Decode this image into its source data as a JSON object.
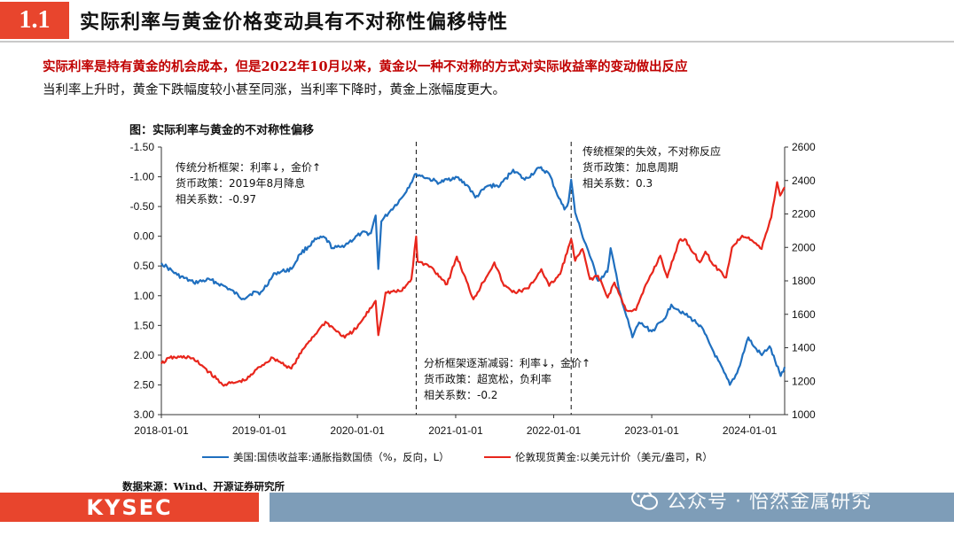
{
  "header": {
    "section_number": "1.1",
    "title": "实际利率与黄金价格变动具有不对称性偏移特性"
  },
  "subtitle": {
    "red": "实际利率是持有黄金的机会成本，但是2022年10月以来，黄金以一种不对称的方式对实际收益率的变动做出反应",
    "black": "当利率上升时，黄金下跌幅度较小甚至同涨，当利率下降时，黄金上涨幅度更大。"
  },
  "chart_title": "图：实际利率与黄金的不对称性偏移",
  "chart_data": {
    "type": "line",
    "title": "图：实际利率与黄金的不对称性偏移",
    "x_ticks": [
      "2018-01-01",
      "2019-01-01",
      "2020-01-01",
      "2021-01-01",
      "2022-01-01",
      "2023-01-01",
      "2024-01-01"
    ],
    "x_range": [
      "2018-01-01",
      "2024-05-10"
    ],
    "y_left_ticks": [
      "-1.50",
      "-1.00",
      "-0.50",
      "0.00",
      "0.50",
      "1.00",
      "1.50",
      "2.00",
      "2.50",
      "3.00"
    ],
    "y_left_range": [
      -1.5,
      3.0
    ],
    "y_left_reversed": true,
    "y_right_ticks": [
      "1000",
      "1200",
      "1400",
      "1600",
      "1800",
      "2000",
      "2200",
      "2400",
      "2600"
    ],
    "y_right_range": [
      1000,
      2600
    ],
    "vertical_markers": [
      "2020-08-07",
      "2022-03-07"
    ],
    "grid": false,
    "legend_position": "bottom",
    "series": [
      {
        "name": "美国:国债收益率:通胀指数国债（%，反向，L）",
        "axis": "left",
        "color": "#1f6fbf",
        "points": [
          [
            "2018-01-01",
            0.45
          ],
          [
            "2018-03-01",
            0.65
          ],
          [
            "2018-05-01",
            0.78
          ],
          [
            "2018-07-01",
            0.73
          ],
          [
            "2018-09-01",
            0.86
          ],
          [
            "2018-11-01",
            1.05
          ],
          [
            "2018-12-15",
            0.93
          ],
          [
            "2019-01-01",
            0.98
          ],
          [
            "2019-03-01",
            0.62
          ],
          [
            "2019-05-01",
            0.55
          ],
          [
            "2019-06-01",
            0.3
          ],
          [
            "2019-08-01",
            0.05
          ],
          [
            "2019-09-01",
            0.02
          ],
          [
            "2019-10-01",
            0.2
          ],
          [
            "2019-11-01",
            0.18
          ],
          [
            "2019-12-01",
            0.1
          ],
          [
            "2020-01-15",
            -0.05
          ],
          [
            "2020-02-20",
            -0.05
          ],
          [
            "2020-03-09",
            -0.35
          ],
          [
            "2020-03-19",
            0.55
          ],
          [
            "2020-03-30",
            -0.25
          ],
          [
            "2020-05-01",
            -0.42
          ],
          [
            "2020-06-15",
            -0.65
          ],
          [
            "2020-08-07",
            -1.05
          ],
          [
            "2020-09-15",
            -0.98
          ],
          [
            "2020-11-01",
            -0.9
          ],
          [
            "2021-01-01",
            -1.0
          ],
          [
            "2021-02-15",
            -0.85
          ],
          [
            "2021-03-15",
            -0.65
          ],
          [
            "2021-05-01",
            -0.85
          ],
          [
            "2021-06-15",
            -0.85
          ],
          [
            "2021-08-03",
            -1.12
          ],
          [
            "2021-09-15",
            -0.95
          ],
          [
            "2021-11-10",
            -1.15
          ],
          [
            "2021-12-15",
            -1.05
          ],
          [
            "2022-01-10",
            -0.75
          ],
          [
            "2022-02-10",
            -0.45
          ],
          [
            "2022-02-25",
            -0.58
          ],
          [
            "2022-03-07",
            -0.95
          ],
          [
            "2022-03-22",
            -0.4
          ],
          [
            "2022-04-15",
            -0.05
          ],
          [
            "2022-05-10",
            0.25
          ],
          [
            "2022-06-15",
            0.75
          ],
          [
            "2022-07-20",
            0.6
          ],
          [
            "2022-08-01",
            0.2
          ],
          [
            "2022-09-01",
            0.9
          ],
          [
            "2022-10-21",
            1.7
          ],
          [
            "2022-11-15",
            1.45
          ],
          [
            "2023-01-01",
            1.6
          ],
          [
            "2023-02-15",
            1.4
          ],
          [
            "2023-03-15",
            1.15
          ],
          [
            "2023-05-01",
            1.3
          ],
          [
            "2023-07-01",
            1.5
          ],
          [
            "2023-08-20",
            1.95
          ],
          [
            "2023-10-19",
            2.5
          ],
          [
            "2023-11-15",
            2.3
          ],
          [
            "2023-12-27",
            1.7
          ],
          [
            "2024-01-15",
            1.85
          ],
          [
            "2024-02-15",
            2.0
          ],
          [
            "2024-03-15",
            1.85
          ],
          [
            "2024-04-25",
            2.35
          ],
          [
            "2024-05-10",
            2.2
          ]
        ]
      },
      {
        "name": "伦敦现货黄金:以美元计价（美元/盎司，R）",
        "axis": "right",
        "color": "#e8261c",
        "points": [
          [
            "2018-01-01",
            1305
          ],
          [
            "2018-02-01",
            1340
          ],
          [
            "2018-04-15",
            1345
          ],
          [
            "2018-06-01",
            1295
          ],
          [
            "2018-08-16",
            1180
          ],
          [
            "2018-10-01",
            1190
          ],
          [
            "2018-11-15",
            1210
          ],
          [
            "2019-01-01",
            1285
          ],
          [
            "2019-02-20",
            1340
          ],
          [
            "2019-04-30",
            1275
          ],
          [
            "2019-06-25",
            1420
          ],
          [
            "2019-08-07",
            1500
          ],
          [
            "2019-09-04",
            1555
          ],
          [
            "2019-11-15",
            1460
          ],
          [
            "2019-12-31",
            1520
          ],
          [
            "2020-01-15",
            1555
          ],
          [
            "2020-03-09",
            1680
          ],
          [
            "2020-03-19",
            1475
          ],
          [
            "2020-04-15",
            1730
          ],
          [
            "2020-06-15",
            1740
          ],
          [
            "2020-07-20",
            1810
          ],
          [
            "2020-08-07",
            2065
          ],
          [
            "2020-08-12",
            1915
          ],
          [
            "2020-09-30",
            1885
          ],
          [
            "2020-11-30",
            1780
          ],
          [
            "2021-01-05",
            1945
          ],
          [
            "2021-03-08",
            1690
          ],
          [
            "2021-05-25",
            1910
          ],
          [
            "2021-06-30",
            1770
          ],
          [
            "2021-08-10",
            1730
          ],
          [
            "2021-09-30",
            1755
          ],
          [
            "2021-11-16",
            1870
          ],
          [
            "2021-12-15",
            1770
          ],
          [
            "2022-01-25",
            1840
          ],
          [
            "2022-03-07",
            2050
          ],
          [
            "2022-03-22",
            1920
          ],
          [
            "2022-04-18",
            1990
          ],
          [
            "2022-05-16",
            1810
          ],
          [
            "2022-06-15",
            1830
          ],
          [
            "2022-07-21",
            1700
          ],
          [
            "2022-08-15",
            1790
          ],
          [
            "2022-09-27",
            1625
          ],
          [
            "2022-11-03",
            1625
          ],
          [
            "2022-12-15",
            1790
          ],
          [
            "2023-02-02",
            1950
          ],
          [
            "2023-02-28",
            1820
          ],
          [
            "2023-04-13",
            2040
          ],
          [
            "2023-05-04",
            2050
          ],
          [
            "2023-06-29",
            1910
          ],
          [
            "2023-07-20",
            1975
          ],
          [
            "2023-08-22",
            1890
          ],
          [
            "2023-10-05",
            1820
          ],
          [
            "2023-10-27",
            2000
          ],
          [
            "2023-12-04",
            2070
          ],
          [
            "2023-12-28",
            2060
          ],
          [
            "2024-02-14",
            1990
          ],
          [
            "2024-03-01",
            2080
          ],
          [
            "2024-03-21",
            2180
          ],
          [
            "2024-04-12",
            2390
          ],
          [
            "2024-04-23",
            2310
          ],
          [
            "2024-05-10",
            2360
          ]
        ]
      }
    ],
    "annotations": [
      {
        "id": "period1",
        "lines": [
          "传统分析框架：利率↓，金价↑",
          "货币政策：2019年8月降息",
          "相关系数：-0.97"
        ]
      },
      {
        "id": "period2",
        "lines": [
          "分析框架逐渐减弱：利率↓，金价↑",
          "货币政策：超宽松，负利率",
          "相关系数：-0.2"
        ]
      },
      {
        "id": "period3",
        "lines": [
          "传统框架的失效，不对称反应",
          "货币政策：加息周期",
          "相关系数：0.3"
        ]
      }
    ]
  },
  "legend": [
    {
      "label": "美国:国债收益率:通胀指数国债（%，反向，L）",
      "color": "#1f6fbf"
    },
    {
      "label": "伦敦现货黄金:以美元计价（美元/盎司，R）",
      "color": "#e8261c"
    }
  ],
  "source_note": "数据来源：Wind、开源证券研究所",
  "footer": {
    "logo": "KYSEC",
    "watermark": "公众号 · 怡然金属研究",
    "watermark_icon": "wechat-icon"
  }
}
